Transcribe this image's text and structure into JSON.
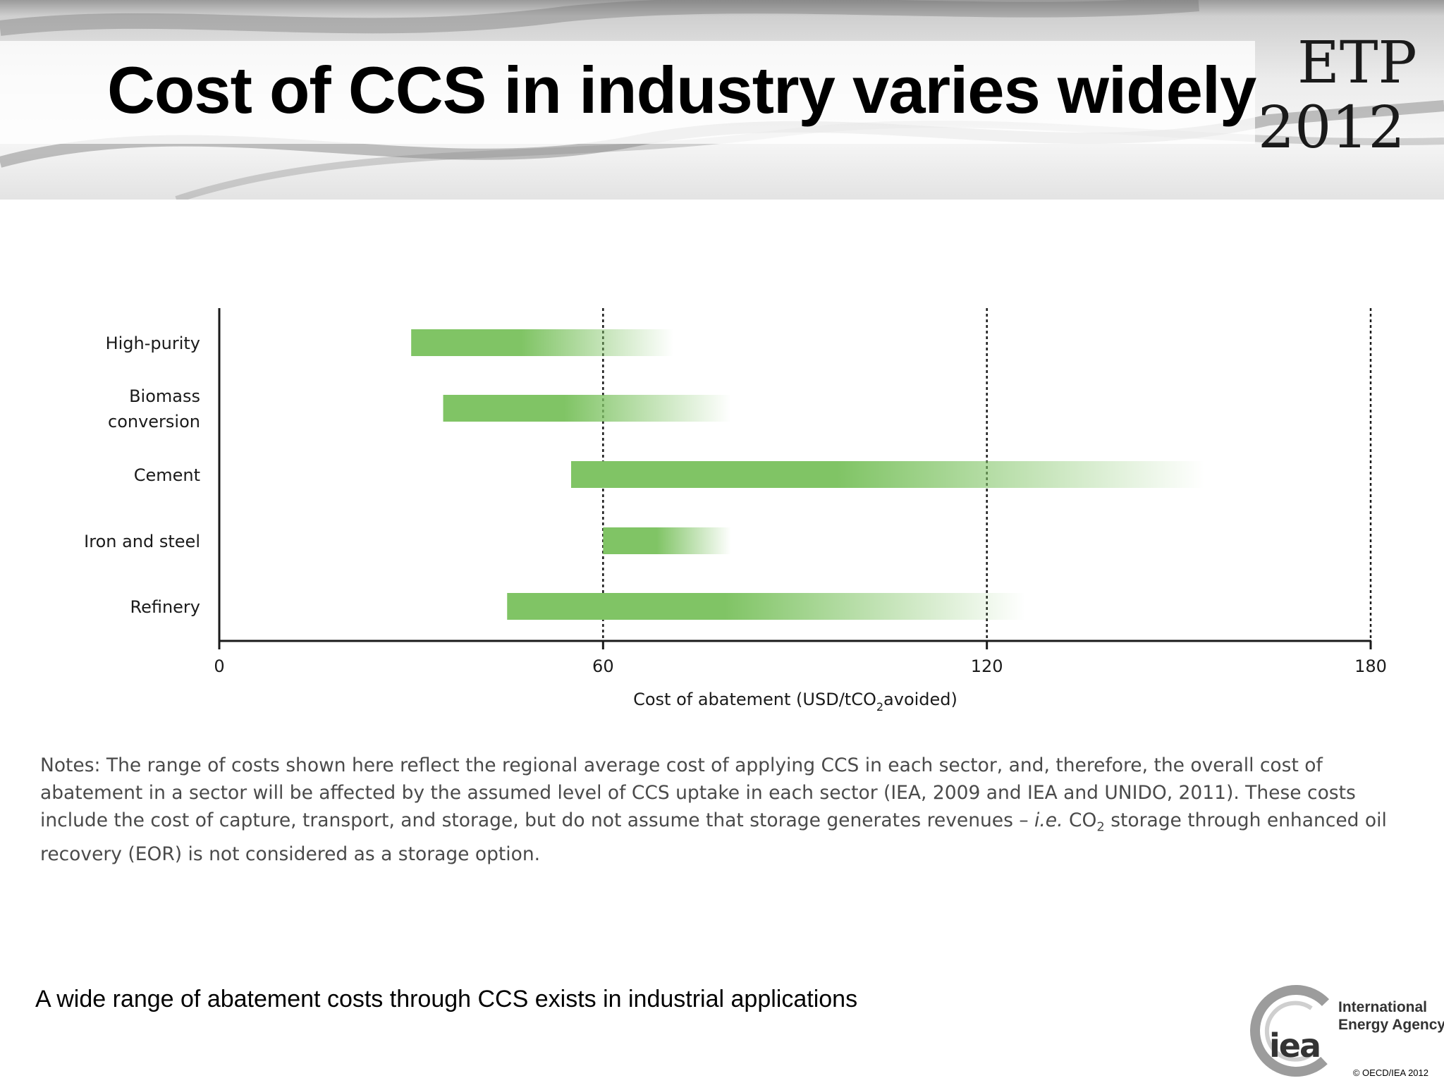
{
  "slide": {
    "title": "Cost of CCS in industry varies widely",
    "badge_line1": "ETP",
    "badge_line2": "2012",
    "caption": "A wide range of abatement costs through CCS exists in industrial applications",
    "copyright": "© OECD/IEA 2012"
  },
  "notes": {
    "part1": "Notes: The range of costs shown here reflect the regional average cost of applying CCS in each sector, and, therefore, the overall cost of abatement in a sector will be affected by the assumed level of CCS uptake in each sector (IEA, 2009 and IEA and UNIDO, 2011). These costs include the cost of capture, transport, and storage, but do not assume that storage generates revenues – ",
    "italic": "i.e.",
    "part2": " CO",
    "sub": "2",
    "part3": " storage through enhanced oil recovery (EOR) is not considered as a storage option."
  },
  "logo": {
    "mark": "iea",
    "name_line1": "International",
    "name_line2": "Energy Agency"
  },
  "chart_data": {
    "type": "bar",
    "orientation": "horizontal",
    "style": "floating range bars, solid green fading to white at the upper end",
    "categories": [
      [
        "High-purity"
      ],
      [
        "Biomass",
        "conversion"
      ],
      [
        "Cement"
      ],
      [
        "Iron and steel"
      ],
      [
        "Refinery"
      ]
    ],
    "ranges": [
      [
        30,
        71
      ],
      [
        35,
        80
      ],
      [
        55,
        154
      ],
      [
        60,
        80
      ],
      [
        45,
        126
      ]
    ],
    "x_ticks": [
      0,
      60,
      120,
      180
    ],
    "xlim": [
      0,
      180
    ],
    "xlabel_main": "Cost of abatement (USD/tCO",
    "xlabel_sub": "2",
    "xlabel_tail": "avoided)",
    "vertical_dashed_lines_at": [
      60,
      120,
      180
    ],
    "colors": {
      "bar": "#80c465",
      "axis": "#1a1a1a"
    }
  }
}
